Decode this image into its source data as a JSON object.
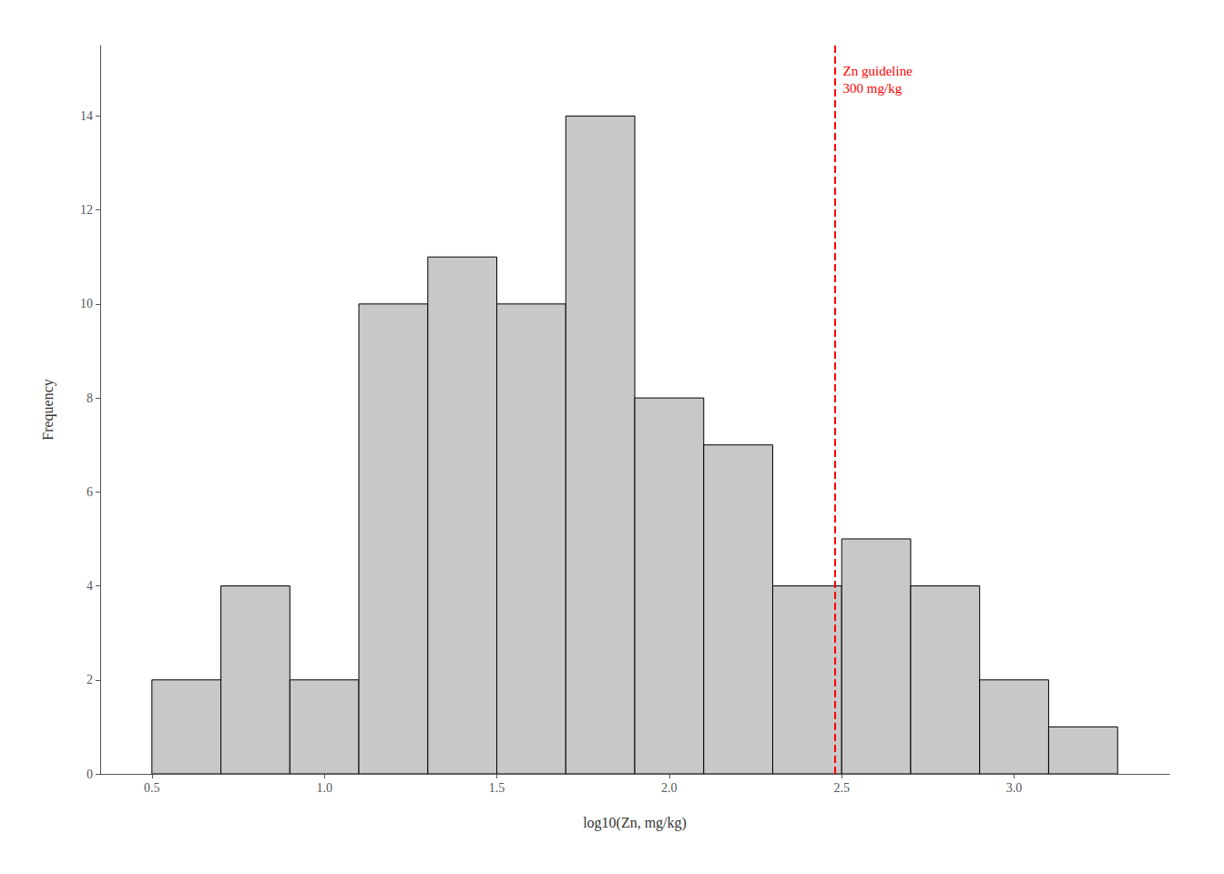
{
  "chart_data": {
    "type": "histogram",
    "xlabel": "log10(Zn, mg/kg)",
    "ylabel": "Frequency",
    "bins": [
      0.5,
      0.7,
      0.9,
      1.1,
      1.3,
      1.5,
      1.7,
      1.9,
      2.1,
      2.3,
      2.5,
      2.7,
      2.9,
      3.1,
      3.3
    ],
    "counts": [
      2,
      4,
      2,
      10,
      11,
      10,
      14,
      8,
      7,
      4,
      5,
      4,
      2,
      1
    ],
    "color": "#c8c8c8",
    "xlim": [
      0.35,
      3.45
    ],
    "xticks": [
      0.5,
      {
        "value": 1.0,
        "label": "1.0"
      },
      1.5,
      {
        "value": 2.0,
        "label": "2.0"
      },
      2.5,
      {
        "value": 3.0,
        "label": "3.0"
      }
    ],
    "ylim": [
      0,
      15.5
    ],
    "yticks": [
      0,
      2,
      4,
      6,
      8,
      10,
      12,
      14
    ],
    "grid": false,
    "annotations": [
      {
        "x": 2.4771212547196626,
        "text": [
          "Zn guideline",
          "300 mg/kg"
        ],
        "color": "red",
        "line_style": "dashed"
      }
    ]
  }
}
